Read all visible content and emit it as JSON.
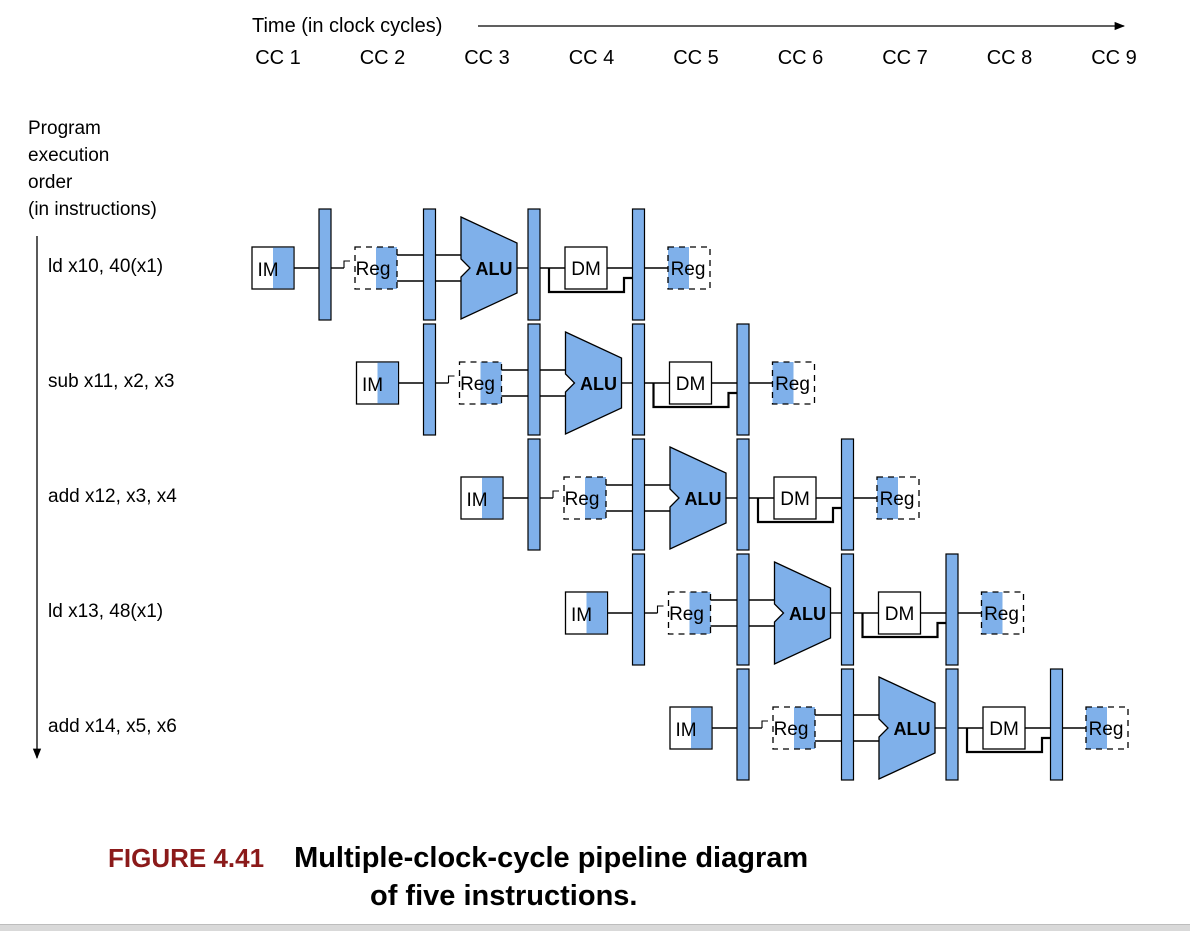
{
  "time_axis": {
    "label": "Time (in clock cycles)",
    "cycles": [
      "CC 1",
      "CC 2",
      "CC 3",
      "CC 4",
      "CC 5",
      "CC 6",
      "CC 7",
      "CC 8",
      "CC 9"
    ]
  },
  "order_axis": {
    "lines": [
      "Program",
      "execution",
      "order",
      "(in instructions)"
    ]
  },
  "instructions": [
    {
      "label": "ld x10, 40(x1)"
    },
    {
      "label": "sub x11, x2, x3"
    },
    {
      "label": "add x12, x3, x4"
    },
    {
      "label": "ld x13, 48(x1)"
    },
    {
      "label": "add x14, x5, x6"
    }
  ],
  "stages": {
    "instruction_memory": "IM",
    "register_file": "Reg",
    "alu": "ALU",
    "data_memory": "DM"
  },
  "colors": {
    "accent": "#7fb0ea",
    "caption_label": "#8b1a1a"
  },
  "caption": {
    "label": "FIGURE 4.41",
    "line1": "Multiple-clock-cycle pipeline diagram",
    "line2": "of five instructions."
  }
}
